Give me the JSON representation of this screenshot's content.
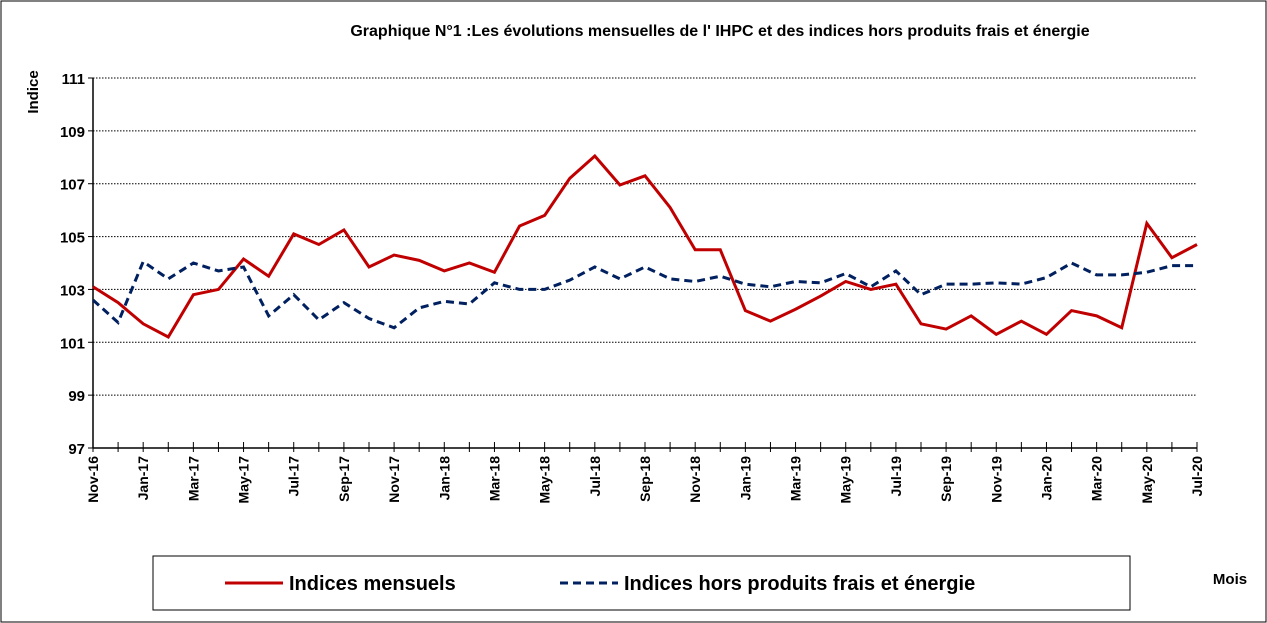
{
  "chart_data": {
    "type": "line",
    "title": "Graphique N°1 :Les évolutions mensuelles de l' IHPC et des indices  hors produits frais et énergie",
    "y_label": "Indice",
    "x_label": "Mois",
    "categories": [
      "Nov-16",
      null,
      "Jan-17",
      null,
      "Mar-17",
      null,
      "May-17",
      null,
      "Jul-17",
      null,
      "Sep-17",
      null,
      "Nov-17",
      null,
      "Jan-18",
      null,
      "Mar-18",
      null,
      "May-18",
      null,
      "Jul-18",
      null,
      "Sep-18",
      null,
      "Nov-18",
      null,
      "Jan-19",
      null,
      "Mar-19",
      null,
      "May-19",
      null,
      "Jul-19",
      null,
      "Sep-19",
      null,
      "Nov-19",
      null,
      "Jan-20",
      null,
      "Mar-20",
      null,
      "May-20",
      null,
      "Jul-20"
    ],
    "series": [
      {
        "name": "Indices mensuels",
        "color": "#c00000",
        "dash": false,
        "values": [
          103.1,
          102.5,
          101.7,
          101.2,
          102.8,
          103.0,
          104.15,
          103.5,
          105.1,
          104.7,
          105.25,
          103.85,
          104.3,
          104.1,
          103.7,
          104.0,
          103.65,
          105.4,
          105.8,
          107.2,
          108.05,
          106.95,
          107.3,
          106.1,
          104.5,
          104.5,
          102.2,
          101.8,
          102.25,
          102.75,
          103.3,
          103.0,
          103.2,
          101.7,
          101.5,
          102.0,
          101.3,
          101.8,
          101.3,
          102.2,
          102.0,
          101.55,
          105.5,
          104.2,
          104.7
        ]
      },
      {
        "name": "Indices  hors produits frais et énergie",
        "color": "#002060",
        "dash": true,
        "values": [
          102.6,
          101.75,
          104.05,
          103.4,
          104.0,
          103.7,
          103.85,
          102.0,
          102.8,
          101.85,
          102.5,
          101.9,
          101.55,
          102.3,
          102.55,
          102.45,
          103.25,
          103.0,
          103.0,
          103.35,
          103.85,
          103.4,
          103.85,
          103.4,
          103.3,
          103.5,
          103.2,
          103.1,
          103.3,
          103.25,
          103.6,
          103.1,
          103.7,
          102.8,
          103.2,
          103.2,
          103.25,
          103.2,
          103.45,
          104.0,
          103.55,
          103.55,
          103.65,
          103.9,
          103.9
        ]
      }
    ],
    "ylim": [
      97,
      111
    ],
    "yticks": [
      97,
      99,
      101,
      103,
      105,
      107,
      109,
      111
    ],
    "grid": true
  }
}
